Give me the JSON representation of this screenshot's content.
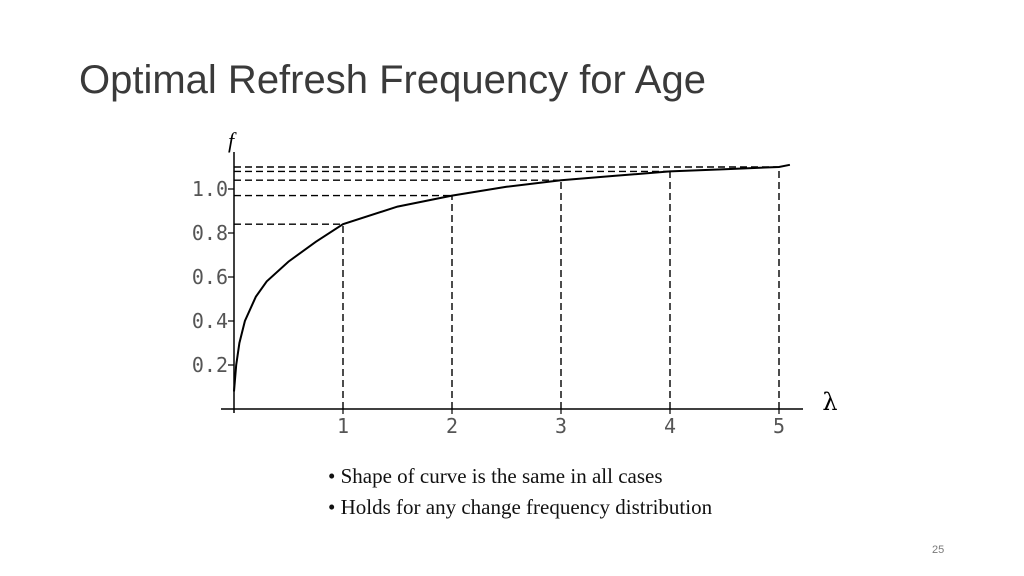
{
  "slide": {
    "title": "Optimal Refresh Frequency for Age",
    "bullets": [
      "Shape of curve is the same in all cases",
      "Holds for any change frequency distribution"
    ],
    "page_number": "25"
  },
  "chart_data": {
    "type": "line",
    "title": "",
    "xlabel": "λ",
    "ylabel": "f",
    "xlim": [
      0,
      5.2
    ],
    "ylim": [
      0,
      1.1
    ],
    "x_ticks": [
      "1",
      "2",
      "3",
      "4",
      "5"
    ],
    "y_ticks": [
      "0.2",
      "0.4",
      "0.6",
      "0.8",
      "1.0"
    ],
    "grid": false,
    "legend": "none",
    "series": [
      {
        "x": [
          0,
          0.02,
          0.05,
          0.1,
          0.2,
          0.3,
          0.5,
          0.75,
          1,
          1.5,
          2,
          2.5,
          3,
          3.5,
          4,
          4.5,
          5,
          5.1
        ],
        "y": [
          0.08,
          0.2,
          0.3,
          0.4,
          0.51,
          0.58,
          0.67,
          0.76,
          0.84,
          0.92,
          0.97,
          1.01,
          1.04,
          1.06,
          1.08,
          1.09,
          1.1,
          1.11
        ]
      }
    ],
    "reference_points": [
      {
        "x": 1,
        "y": 0.84
      },
      {
        "x": 2,
        "y": 0.97
      },
      {
        "x": 3,
        "y": 1.04
      },
      {
        "x": 4,
        "y": 1.08
      },
      {
        "x": 5,
        "y": 1.1
      }
    ],
    "line_color": "#000000",
    "tick_label_color": "#555555"
  }
}
